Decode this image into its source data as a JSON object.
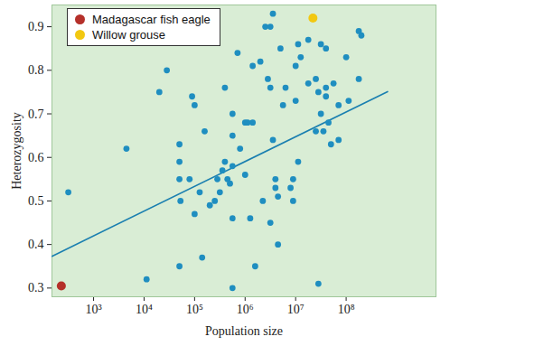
{
  "chart_data": {
    "type": "scatter",
    "x_label": "Population size",
    "y_label": "Heterozygosity",
    "log": "x",
    "grid": false,
    "legend": "top-left",
    "xlim": [
      150,
      6000000000
    ],
    "xticks": [
      {
        "value": 1000,
        "label": "10³"
      },
      {
        "value": 10000,
        "label": "10⁴"
      },
      {
        "value": 100000,
        "label": "10⁵"
      },
      {
        "value": 1000000,
        "label": "10⁶"
      },
      {
        "value": 10000000,
        "label": "10⁷"
      },
      {
        "value": 100000000,
        "label": "10⁸"
      }
    ],
    "ylim": [
      0.28,
      0.95
    ],
    "yticks": [
      0.3,
      0.4,
      0.5,
      0.6,
      0.7,
      0.8,
      0.9
    ],
    "series": [
      {
        "type": "scatter",
        "color": "#1f8ec0",
        "marker": "circle",
        "x": [
          316,
          4470,
          11200,
          20000,
          28200,
          50100,
          50100,
          50100,
          52500,
          50100,
          89100,
          100000,
          100000,
          126000,
          79400,
          141000,
          158000,
          200000,
          251000,
          282000,
          316000,
          355000,
          398000,
          398000,
          447000,
          501000,
          562000,
          562000,
          562000,
          562000,
          562000,
          708000,
          794000,
          1000000,
          1000000,
          1120000,
          1260000,
          1410000,
          1410000,
          1580000,
          2000000,
          2240000,
          2510000,
          2820000,
          3160000,
          3160000,
          3550000,
          3550000,
          3160000,
          3980000,
          3980000,
          4470000,
          4470000,
          5010000,
          5620000,
          6310000,
          7940000,
          8910000,
          8910000,
          10000000,
          10000000,
          11200000,
          11200000,
          12600000,
          17800000,
          17800000,
          25100000,
          25100000,
          28200000,
          28200000,
          31600000,
          31600000,
          35500000,
          39800000,
          39800000,
          44700000,
          50100000,
          56200000,
          70800000,
          70800000,
          100000000,
          112000000,
          178000000,
          178000000,
          200000000,
          39800000
        ],
        "values": [
          0.52,
          0.62,
          0.32,
          0.75,
          0.8,
          0.55,
          0.59,
          0.63,
          0.5,
          0.35,
          0.74,
          0.72,
          0.47,
          0.52,
          0.55,
          0.37,
          0.66,
          0.49,
          0.5,
          0.55,
          0.52,
          0.57,
          0.76,
          0.59,
          0.55,
          0.54,
          0.58,
          0.65,
          0.7,
          0.46,
          0.3,
          0.84,
          0.62,
          0.56,
          0.68,
          0.68,
          0.46,
          0.68,
          0.81,
          0.35,
          0.82,
          0.5,
          0.9,
          0.78,
          0.76,
          0.45,
          0.64,
          0.93,
          0.9,
          0.53,
          0.55,
          0.51,
          0.4,
          0.85,
          0.72,
          0.76,
          0.53,
          0.5,
          0.55,
          0.81,
          0.73,
          0.59,
          0.86,
          0.83,
          0.87,
          0.77,
          0.78,
          0.66,
          0.31,
          0.75,
          0.86,
          0.7,
          0.66,
          0.76,
          0.74,
          0.68,
          0.63,
          0.77,
          0.72,
          0.64,
          0.83,
          0.73,
          0.78,
          0.89,
          0.88,
          0.85
        ]
      },
      {
        "type": "line",
        "color": "#1a7fb0",
        "line_style": "solid",
        "x": [
          150,
          660000000
        ],
        "values": [
          0.373,
          0.751
        ]
      },
      {
        "type": "scatter",
        "name": "Madagascar fish eagle",
        "color": "#b5302a",
        "marker": "circle",
        "x": [
          230
        ],
        "values": [
          0.305
        ]
      },
      {
        "type": "scatter",
        "name": "Willow grouse",
        "color": "#f2c811",
        "marker": "circle",
        "x": [
          22000000
        ],
        "values": [
          0.92
        ]
      }
    ]
  }
}
